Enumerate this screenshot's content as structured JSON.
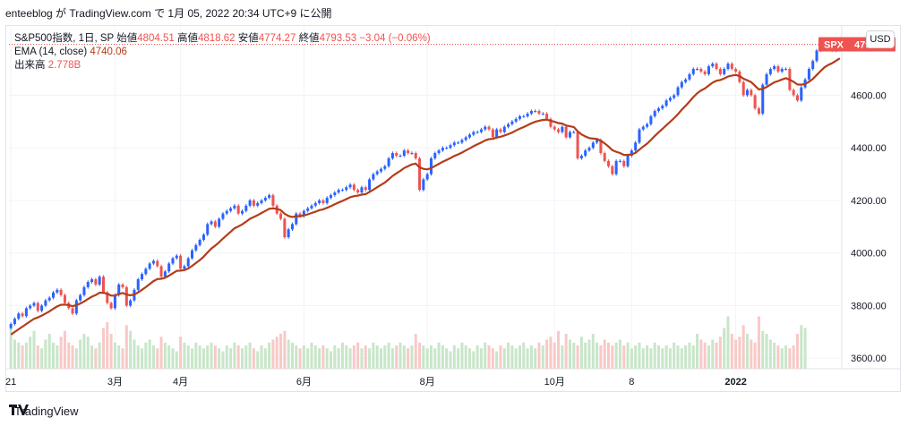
{
  "caption": "enteeblog が TradingView.com で 1月 05, 2022 20:34 UTC+9 に公開",
  "legend": {
    "symbol_line_prefix": "S&P500指数, 1日, SP",
    "open_label": "始値",
    "open_value": "4804.51",
    "high_label": "高値",
    "high_value": "4818.62",
    "low_label": "安値",
    "low_value": "4774.27",
    "close_label": "終値",
    "close_value": "4793.53",
    "change_value": "−3.04 (−0.06%)",
    "ema_label": "EMA (14, close)",
    "ema_value": "4740.06",
    "volume_label": "出来高",
    "volume_value": "2.778B"
  },
  "currency_button": "USD",
  "brand": {
    "name": "TradingView"
  },
  "colors": {
    "up": "#2962ff",
    "down": "#ef5350",
    "ema": "#b23d1a",
    "vol_up": "#c8e6c9",
    "vol_down": "#f8c9c7",
    "price_tag": "#ef5350"
  },
  "chart_data": {
    "type": "candlestick",
    "symbol": "SPX",
    "last_price": "4793.53",
    "ylim": [
      3560,
      4860
    ],
    "y_ticks": [
      "3600.00",
      "3800.00",
      "4000.00",
      "4200.00",
      "4400.00",
      "4600.00"
    ],
    "x_tick_labels": [
      "21",
      "3月",
      "4月",
      "6月",
      "8月",
      "10月",
      "8",
      "2022"
    ],
    "x_tick_index": [
      0,
      27,
      44,
      76,
      108,
      141,
      161,
      188
    ],
    "closes": [
      3730,
      3750,
      3770,
      3760,
      3790,
      3800,
      3810,
      3780,
      3800,
      3820,
      3830,
      3850,
      3860,
      3840,
      3810,
      3790,
      3770,
      3820,
      3840,
      3870,
      3890,
      3900,
      3880,
      3910,
      3850,
      3810,
      3790,
      3840,
      3880,
      3870,
      3800,
      3820,
      3860,
      3900,
      3920,
      3940,
      3960,
      3970,
      3950,
      3910,
      3930,
      3960,
      3980,
      3990,
      3940,
      3950,
      3980,
      4010,
      4030,
      4050,
      4070,
      4110,
      4120,
      4100,
      4130,
      4150,
      4160,
      4170,
      4180,
      4150,
      4160,
      4180,
      4200,
      4180,
      4190,
      4200,
      4210,
      4220,
      4180,
      4150,
      4130,
      4060,
      4090,
      4110,
      4150,
      4140,
      4160,
      4170,
      4180,
      4190,
      4200,
      4190,
      4210,
      4220,
      4230,
      4240,
      4240,
      4250,
      4260,
      4240,
      4230,
      4250,
      4240,
      4280,
      4300,
      4310,
      4320,
      4330,
      4360,
      4380,
      4370,
      4370,
      4390,
      4380,
      4380,
      4360,
      4240,
      4280,
      4300,
      4360,
      4380,
      4390,
      4400,
      4400,
      4410,
      4420,
      4420,
      4430,
      4440,
      4450,
      4460,
      4460,
      4470,
      4480,
      4470,
      4440,
      4470,
      4460,
      4480,
      4490,
      4500,
      4510,
      4520,
      4520,
      4530,
      4540,
      4540,
      4530,
      4530,
      4510,
      4480,
      4470,
      4460,
      4480,
      4440,
      4460,
      4460,
      4360,
      4370,
      4390,
      4400,
      4420,
      4430,
      4380,
      4350,
      4330,
      4300,
      4350,
      4350,
      4330,
      4370,
      4390,
      4420,
      4470,
      4480,
      4490,
      4520,
      4540,
      4550,
      4560,
      4580,
      4590,
      4600,
      4630,
      4650,
      4660,
      4680,
      4700,
      4700,
      4690,
      4680,
      4710,
      4720,
      4700,
      4680,
      4700,
      4720,
      4700,
      4690,
      4650,
      4600,
      4620,
      4600,
      4550,
      4530,
      4640,
      4680,
      4700,
      4710,
      4690,
      4700,
      4700,
      4620,
      4600,
      4580,
      4630,
      4660,
      4700,
      4730,
      4770,
      4790,
      4800,
      4780,
      4770,
      4790,
      4793.53
    ],
    "ema": [
      3690,
      3700,
      3710,
      3720,
      3730,
      3740,
      3750,
      3755,
      3762,
      3770,
      3778,
      3788,
      3797,
      3803,
      3804,
      3802,
      3798,
      3802,
      3808,
      3816,
      3825,
      3834,
      3840,
      3849,
      3849,
      3845,
      3838,
      3838,
      3844,
      3848,
      3842,
      3839,
      3842,
      3850,
      3860,
      3870,
      3882,
      3893,
      3901,
      3902,
      3906,
      3914,
      3923,
      3932,
      3933,
      3935,
      3941,
      3951,
      3962,
      3973,
      3986,
      4002,
      4017,
      4028,
      4041,
      4055,
      4068,
      4081,
      4094,
      4101,
      4109,
      4119,
      4130,
      4137,
      4144,
      4152,
      4160,
      4168,
      4170,
      4168,
      4163,
      4149,
      4141,
      4137,
      4140,
      4140,
      4143,
      4147,
      4152,
      4157,
      4163,
      4166,
      4172,
      4178,
      4185,
      4192,
      4198,
      4205,
      4212,
      4216,
      4218,
      4222,
      4224,
      4232,
      4241,
      4250,
      4259,
      4268,
      4280,
      4293,
      4303,
      4312,
      4323,
      4330,
      4337,
      4340,
      4326,
      4320,
      4318,
      4323,
      4331,
      4339,
      4347,
      4354,
      4361,
      4369,
      4375,
      4382,
      4390,
      4398,
      4406,
      4413,
      4420,
      4428,
      4433,
      4434,
      4439,
      4442,
      4447,
      4452,
      4458,
      4466,
      4473,
      4479,
      4486,
      4493,
      4499,
      4503,
      4506,
      4507,
      4503,
      4499,
      4494,
      4492,
      4485,
      4482,
      4479,
      4463,
      4451,
      4443,
      4437,
      4435,
      4434,
      4427,
      4417,
      4405,
      4391,
      4385,
      4380,
      4373,
      4373,
      4375,
      4381,
      4393,
      4405,
      4416,
      4430,
      4445,
      4459,
      4472,
      4486,
      4499,
      4513,
      4528,
      4545,
      4560,
      4576,
      4593,
      4607,
      4618,
      4626,
      4637,
      4648,
      4655,
      4658,
      4664,
      4671,
      4675,
      4677,
      4673,
      4663,
      4657,
      4650,
      4636,
      4622,
      4624,
      4631,
      4640,
      4649,
      4654,
      4660,
      4665,
      4659,
      4651,
      4641,
      4640,
      4643,
      4651,
      4662,
      4677,
      4692,
      4706,
      4715,
      4722,
      4731,
      4740.06
    ],
    "volumes": [
      1.4,
      1.0,
      0.9,
      0.8,
      0.9,
      1.1,
      1.3,
      0.8,
      0.7,
      1.0,
      1.2,
      0.9,
      0.8,
      1.1,
      1.3,
      0.9,
      0.8,
      0.7,
      1.0,
      1.2,
      1.1,
      0.8,
      0.7,
      0.9,
      1.4,
      1.6,
      1.2,
      0.9,
      0.8,
      0.7,
      1.5,
      1.3,
      1.0,
      0.8,
      0.7,
      0.9,
      1.0,
      0.8,
      0.7,
      1.1,
      0.9,
      0.8,
      0.7,
      0.6,
      1.1,
      0.9,
      0.8,
      0.7,
      0.9,
      0.8,
      0.7,
      0.8,
      0.9,
      0.8,
      0.7,
      0.6,
      0.8,
      0.7,
      0.9,
      0.8,
      0.7,
      0.8,
      0.9,
      0.7,
      0.6,
      0.8,
      0.7,
      0.9,
      1.0,
      1.1,
      1.2,
      1.3,
      1.0,
      0.9,
      0.8,
      0.7,
      0.8,
      0.7,
      0.9,
      0.8,
      0.7,
      0.8,
      0.7,
      0.6,
      0.8,
      0.7,
      0.9,
      0.8,
      0.7,
      0.8,
      0.9,
      0.7,
      0.8,
      0.7,
      0.9,
      0.8,
      0.7,
      0.8,
      0.9,
      0.7,
      0.8,
      0.9,
      0.8,
      0.7,
      0.8,
      1.2,
      0.9,
      0.8,
      0.7,
      0.8,
      0.7,
      0.9,
      0.8,
      0.7,
      0.6,
      0.8,
      0.7,
      0.9,
      0.8,
      0.7,
      0.6,
      0.8,
      0.7,
      0.9,
      0.8,
      0.7,
      0.6,
      0.8,
      0.7,
      0.9,
      0.8,
      0.7,
      0.8,
      0.9,
      0.7,
      0.8,
      0.7,
      0.9,
      0.8,
      1.0,
      1.1,
      0.9,
      1.3,
      0.8,
      1.2,
      1.0,
      0.9,
      0.8,
      1.1,
      0.9,
      1.0,
      1.2,
      0.9,
      0.8,
      1.0,
      0.9,
      0.8,
      0.9,
      1.0,
      0.8,
      0.9,
      0.7,
      0.8,
      0.9,
      0.7,
      0.8,
      0.7,
      0.9,
      0.8,
      0.7,
      0.8,
      0.7,
      0.9,
      0.8,
      0.7,
      0.8,
      0.9,
      0.8,
      1.2,
      1.0,
      0.9,
      0.8,
      1.0,
      0.9,
      1.1,
      1.4,
      1.8,
      1.2,
      1.0,
      1.1,
      1.5,
      1.2,
      1.0,
      0.9,
      1.8,
      1.3,
      1.2,
      1.0,
      0.9,
      0.8,
      0.7,
      0.8,
      0.7,
      0.8,
      1.2,
      1.5,
      1.4
    ],
    "volume_max": 2.0
  }
}
